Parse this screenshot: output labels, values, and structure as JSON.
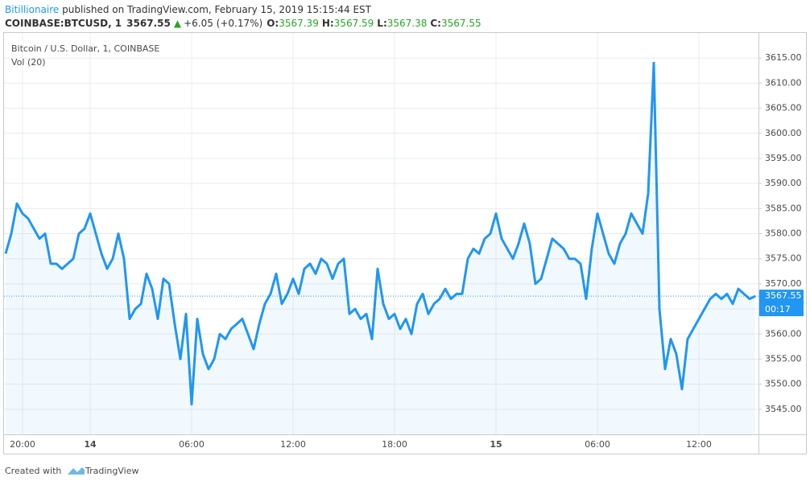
{
  "header": {
    "author": "Bitillionaire",
    "published": " published on TradingView.com, February 15, 2019 15:15:44 EST",
    "symbol": "COINBASE:BTCUSD, 1",
    "price": "3567.55",
    "arrow": "▲",
    "change": "+6.05 (+0.17%)",
    "o_label": "O:",
    "o": "3567.39",
    "h_label": "H:",
    "h": "3567.59",
    "l_label": "L:",
    "l": "3567.38",
    "c_label": "C:",
    "c": "3567.55"
  },
  "chart_data": {
    "type": "line",
    "title": "Bitcoin / U.S. Dollar, 1, COINBASE",
    "subtitle": "Vol (20)",
    "categories": [
      null,
      null,
      null,
      "20:00",
      null,
      null,
      null,
      null,
      null,
      null,
      null,
      null,
      null,
      null,
      null,
      "14",
      null,
      null,
      null,
      null,
      null,
      null,
      null,
      null,
      null,
      null,
      null,
      null,
      null,
      null,
      null,
      null,
      null,
      "06:00",
      null,
      null,
      null,
      null,
      null,
      null,
      null,
      null,
      null,
      null,
      null,
      null,
      null,
      null,
      null,
      null,
      null,
      "12:00",
      null,
      null,
      null,
      null,
      null,
      null,
      null,
      null,
      null,
      null,
      null,
      null,
      null,
      null,
      null,
      null,
      null,
      "18:00",
      null,
      null,
      null,
      null,
      null,
      null,
      null,
      null,
      null,
      null,
      null,
      null,
      null,
      null,
      null,
      null,
      null,
      "15",
      null,
      null,
      null,
      null,
      null,
      null,
      null,
      null,
      null,
      null,
      null,
      null,
      null,
      null,
      null,
      null,
      null,
      "06:00",
      null,
      null,
      null,
      null,
      null,
      null,
      null,
      null,
      null,
      null,
      null,
      null,
      null,
      null,
      null,
      null,
      null,
      "12:00",
      null,
      null,
      null,
      null,
      null,
      null,
      null,
      null,
      null,
      null
    ],
    "series": [
      {
        "name": "BTCUSD",
        "color": "#2196f3",
        "values": [
          3576,
          3580,
          3586,
          3584,
          3583,
          3581,
          3579,
          3580,
          3574,
          3574,
          3573,
          3574,
          3575,
          3580,
          3581,
          3584,
          3580,
          3576,
          3573,
          3575,
          3580,
          3575,
          3563,
          3565,
          3566,
          3572,
          3569,
          3563,
          3571,
          3570,
          3562,
          3555,
          3564,
          3546,
          3563,
          3556,
          3553,
          3555,
          3560,
          3559,
          3561,
          3562,
          3563,
          3560,
          3557,
          3562,
          3566,
          3568,
          3572,
          3566,
          3568,
          3571,
          3568,
          3573,
          3574,
          3572,
          3575,
          3574,
          3571,
          3574,
          3575,
          3564,
          3565,
          3563,
          3564,
          3559,
          3573,
          3566,
          3563,
          3564,
          3561,
          3563,
          3560,
          3566,
          3568,
          3564,
          3566,
          3567,
          3569,
          3567,
          3568,
          3568,
          3575,
          3577,
          3576,
          3579,
          3580,
          3584,
          3579,
          3577,
          3575,
          3578,
          3582,
          3578,
          3570,
          3571,
          3575,
          3579,
          3578,
          3577,
          3575,
          3575,
          3574,
          3567,
          3577,
          3584,
          3580,
          3576,
          3574,
          3578,
          3580,
          3584,
          3582,
          3580,
          3588,
          3614,
          3565,
          3553,
          3559,
          3556,
          3549,
          3559,
          3561,
          3563,
          3565,
          3567,
          3568,
          3567,
          3568,
          3566,
          3569,
          3568,
          3567,
          3567.55
        ]
      }
    ],
    "ylim": [
      3540,
      3620
    ],
    "yticks": [
      {
        "value": 3545,
        "label": "3545.00"
      },
      {
        "value": 3550,
        "label": "3550.00"
      },
      {
        "value": 3555,
        "label": "3555.00"
      },
      {
        "value": 3560,
        "label": "3560.00"
      },
      {
        "value": 3565,
        "label": "3565.00"
      },
      {
        "value": 3570,
        "label": "3570.00"
      },
      {
        "value": 3575,
        "label": "3575.00"
      },
      {
        "value": 3580,
        "label": "3580.00"
      },
      {
        "value": 3585,
        "label": "3585.00"
      },
      {
        "value": 3590,
        "label": "3590.00"
      },
      {
        "value": 3595,
        "label": "3595.00"
      },
      {
        "value": 3600,
        "label": "3600.00"
      },
      {
        "value": 3605,
        "label": "3605.00"
      },
      {
        "value": 3610,
        "label": "3610.00"
      },
      {
        "value": 3615,
        "label": "3615.00"
      }
    ],
    "grid": true,
    "last_price": 3567.55,
    "countdown": "00:17"
  },
  "footer": {
    "created": "Created with",
    "brand": "TradingView"
  }
}
